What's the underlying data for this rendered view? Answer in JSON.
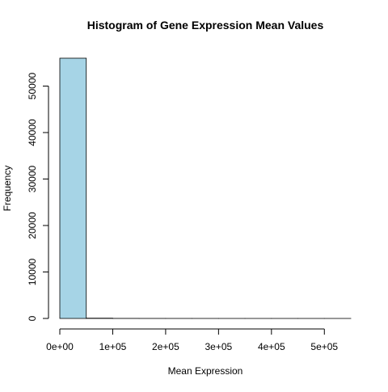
{
  "chart_data": {
    "type": "bar",
    "title": "Histogram of Gene Expression Mean Values",
    "xlabel": "Mean Expression",
    "ylabel": "Frequency",
    "bin_width": 50000,
    "bins": [
      {
        "start": 0,
        "end": 50000,
        "count": 56000
      },
      {
        "start": 50000,
        "end": 100000,
        "count": 60
      },
      {
        "start": 100000,
        "end": 150000,
        "count": 15
      },
      {
        "start": 150000,
        "end": 200000,
        "count": 8
      },
      {
        "start": 200000,
        "end": 250000,
        "count": 5
      },
      {
        "start": 250000,
        "end": 300000,
        "count": 3
      },
      {
        "start": 300000,
        "end": 350000,
        "count": 2
      },
      {
        "start": 350000,
        "end": 400000,
        "count": 2
      },
      {
        "start": 400000,
        "end": 450000,
        "count": 1
      },
      {
        "start": 450000,
        "end": 500000,
        "count": 1
      },
      {
        "start": 500000,
        "end": 550000,
        "count": 1
      }
    ],
    "xlim": [
      0,
      550000
    ],
    "ylim": [
      0,
      56000
    ],
    "x_ticks": [
      0,
      100000,
      200000,
      300000,
      400000,
      500000
    ],
    "x_tick_labels": [
      "0e+00",
      "1e+05",
      "2e+05",
      "3e+05",
      "4e+05",
      "5e+05"
    ],
    "y_ticks": [
      0,
      10000,
      20000,
      30000,
      40000,
      50000
    ],
    "y_tick_labels": [
      "0",
      "10000",
      "20000",
      "30000",
      "40000",
      "50000"
    ],
    "bar_fill": "#a6d4e6",
    "bar_stroke": "#000000",
    "grid": false
  }
}
